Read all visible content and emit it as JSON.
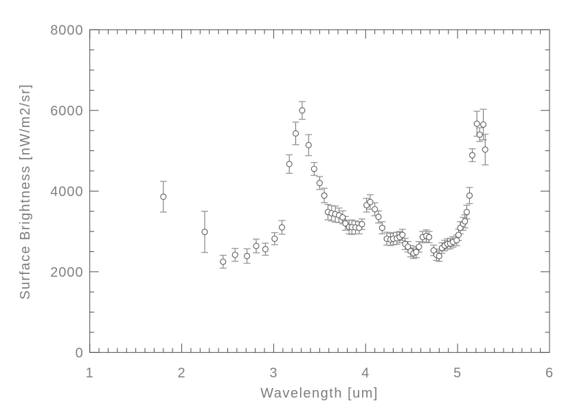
{
  "colors": {
    "frame": "#4a4a4a",
    "tick": "#4a4a4a",
    "tick_text": "#818181",
    "marker": "#5c5c5c",
    "error_line": "#6a6a6a",
    "error_cap": "#9c9c9c",
    "background": "#ffffff"
  },
  "chart_data": {
    "type": "scatter",
    "title": "",
    "xlabel": "Wavelength [um]",
    "ylabel": "Surface Brightness [nW/m2/sr]",
    "xlim": [
      1,
      6
    ],
    "ylim": [
      0,
      8000
    ],
    "x_major_ticks": [
      1,
      2,
      3,
      4,
      5,
      6
    ],
    "y_major_ticks": [
      0,
      2000,
      4000,
      6000,
      8000
    ],
    "x_minor_step": 0.1,
    "y_minor_step": 500,
    "grid": false,
    "legend": null,
    "marker": "open-circle",
    "error_bars": "y",
    "series": [
      {
        "name": "surface-brightness-spectrum",
        "points": [
          [
            1.8,
            3860,
            380
          ],
          [
            2.25,
            2990,
            510
          ],
          [
            2.45,
            2250,
            160
          ],
          [
            2.58,
            2420,
            160
          ],
          [
            2.71,
            2390,
            180
          ],
          [
            2.81,
            2640,
            170
          ],
          [
            2.91,
            2560,
            150
          ],
          [
            3.01,
            2820,
            150
          ],
          [
            3.09,
            3100,
            170
          ],
          [
            3.17,
            4670,
            230
          ],
          [
            3.24,
            5430,
            280
          ],
          [
            3.31,
            6000,
            220
          ],
          [
            3.38,
            5140,
            260
          ],
          [
            3.44,
            4550,
            160
          ],
          [
            3.5,
            4200,
            160
          ],
          [
            3.55,
            3890,
            180
          ],
          [
            3.59,
            3480,
            190
          ],
          [
            3.63,
            3450,
            190
          ],
          [
            3.67,
            3430,
            200
          ],
          [
            3.71,
            3400,
            180
          ],
          [
            3.75,
            3350,
            160
          ],
          [
            3.78,
            3200,
            170
          ],
          [
            3.82,
            3110,
            170
          ],
          [
            3.85,
            3105,
            180
          ],
          [
            3.89,
            3100,
            160
          ],
          [
            3.93,
            3090,
            150
          ],
          [
            3.96,
            3180,
            130
          ],
          [
            4.01,
            3650,
            170
          ],
          [
            4.05,
            3730,
            180
          ],
          [
            4.1,
            3550,
            160
          ],
          [
            4.14,
            3360,
            150
          ],
          [
            4.18,
            3090,
            150
          ],
          [
            4.23,
            2820,
            160
          ],
          [
            4.27,
            2800,
            150
          ],
          [
            4.3,
            2820,
            150
          ],
          [
            4.34,
            2830,
            150
          ],
          [
            4.37,
            2860,
            140
          ],
          [
            4.4,
            2915,
            140
          ],
          [
            4.43,
            2690,
            140
          ],
          [
            4.46,
            2620,
            130
          ],
          [
            4.49,
            2510,
            140
          ],
          [
            4.52,
            2460,
            130
          ],
          [
            4.55,
            2490,
            140
          ],
          [
            4.58,
            2620,
            130
          ],
          [
            4.62,
            2860,
            140
          ],
          [
            4.66,
            2890,
            150
          ],
          [
            4.69,
            2860,
            140
          ],
          [
            4.74,
            2530,
            130
          ],
          [
            4.77,
            2420,
            140
          ],
          [
            4.8,
            2390,
            130
          ],
          [
            4.83,
            2590,
            130
          ],
          [
            4.86,
            2650,
            130
          ],
          [
            4.89,
            2690,
            130
          ],
          [
            4.92,
            2700,
            130
          ],
          [
            4.95,
            2740,
            130
          ],
          [
            4.99,
            2780,
            130
          ],
          [
            5.01,
            2915,
            140
          ],
          [
            5.03,
            3090,
            150
          ],
          [
            5.06,
            3190,
            160
          ],
          [
            5.08,
            3250,
            160
          ],
          [
            5.1,
            3480,
            170
          ],
          [
            5.13,
            3890,
            200
          ],
          [
            5.16,
            4890,
            160
          ],
          [
            5.21,
            5670,
            310
          ],
          [
            5.24,
            5400,
            170
          ],
          [
            5.28,
            5650,
            380
          ],
          [
            5.3,
            5030,
            380
          ]
        ]
      }
    ]
  }
}
